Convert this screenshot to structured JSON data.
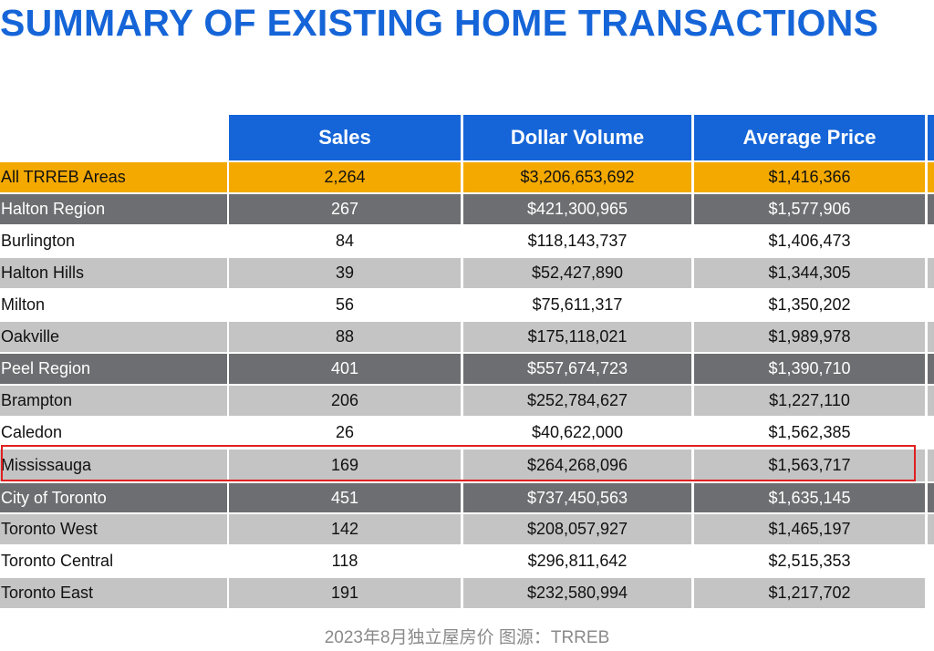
{
  "title": "SUMMARY OF EXISTING HOME TRANSACTIONS",
  "columns": [
    "Sales",
    "Dollar Volume",
    "Average Price"
  ],
  "rows": [
    {
      "area": "All TRREB Areas",
      "sales": "2,264",
      "dollar_volume": "$3,206,653,692",
      "average_price": "$1,416,366"
    },
    {
      "area": "Halton Region",
      "sales": "267",
      "dollar_volume": "$421,300,965",
      "average_price": "$1,577,906"
    },
    {
      "area": "Burlington",
      "sales": "84",
      "dollar_volume": "$118,143,737",
      "average_price": "$1,406,473"
    },
    {
      "area": "Halton Hills",
      "sales": "39",
      "dollar_volume": "$52,427,890",
      "average_price": "$1,344,305"
    },
    {
      "area": "Milton",
      "sales": "56",
      "dollar_volume": "$75,611,317",
      "average_price": "$1,350,202"
    },
    {
      "area": "Oakville",
      "sales": "88",
      "dollar_volume": "$175,118,021",
      "average_price": "$1,989,978"
    },
    {
      "area": "Peel Region",
      "sales": "401",
      "dollar_volume": "$557,674,723",
      "average_price": "$1,390,710"
    },
    {
      "area": "Brampton",
      "sales": "206",
      "dollar_volume": "$252,784,627",
      "average_price": "$1,227,110"
    },
    {
      "area": "Caledon",
      "sales": "26",
      "dollar_volume": "$40,622,000",
      "average_price": "$1,562,385"
    },
    {
      "area": "Mississauga",
      "sales": "169",
      "dollar_volume": "$264,268,096",
      "average_price": "$1,563,717"
    },
    {
      "area": "City of Toronto",
      "sales": "451",
      "dollar_volume": "$737,450,563",
      "average_price": "$1,635,145"
    },
    {
      "area": "Toronto West",
      "sales": "142",
      "dollar_volume": "$208,057,927",
      "average_price": "$1,465,197"
    },
    {
      "area": "Toronto Central",
      "sales": "118",
      "dollar_volume": "$296,811,642",
      "average_price": "$2,515,353"
    },
    {
      "area": "Toronto East",
      "sales": "191",
      "dollar_volume": "$232,580,994",
      "average_price": "$1,217,702"
    }
  ],
  "caption": "2023年8月独立屋房价  图源：TRREB",
  "colors": {
    "header_blue": "#1565d8",
    "total_row": "#f4a900",
    "region_row": "#6d6e71",
    "light_row": "#c4c4c4",
    "highlight_border": "#e02020"
  }
}
